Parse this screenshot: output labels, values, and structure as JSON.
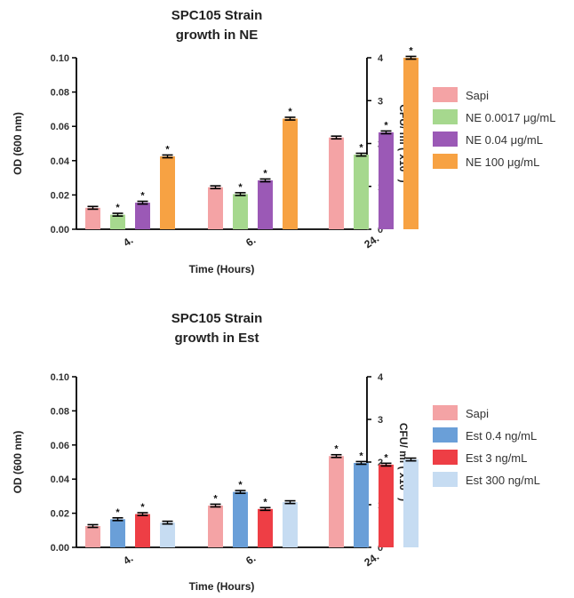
{
  "chart_data": [
    {
      "type": "bar",
      "title_lines": [
        "SPC105 Strain",
        "growth in NE"
      ],
      "xlabel": "Time (Hours)",
      "ylabel": "OD (600 nm)",
      "y2label_parts": [
        "CFU/ ml ( x10",
        "7",
        " )"
      ],
      "ylim": [
        0,
        0.1
      ],
      "y2lim": [
        0,
        4
      ],
      "yticks": [
        "0.00",
        "0.02",
        "0.04",
        "0.06",
        "0.08",
        "0.10"
      ],
      "y2ticks": [
        "0",
        "1",
        "2",
        "3",
        "4"
      ],
      "categories": [
        "4.",
        "6.",
        "24."
      ],
      "series": [
        {
          "name": "Sapi",
          "color": "#f4a3a5",
          "values": [
            0.0125,
            0.0245,
            0.0535
          ],
          "errors": [
            0.0008,
            0.0008,
            0.0008
          ],
          "sig": [
            false,
            false,
            false
          ]
        },
        {
          "name": "NE 0.0017 μg/mL",
          "color": "#a6d88e",
          "values": [
            0.0085,
            0.0205,
            0.0435
          ],
          "errors": [
            0.0008,
            0.0008,
            0.0008
          ],
          "sig": [
            true,
            true,
            true
          ]
        },
        {
          "name": "NE 0.04 μg/mL",
          "color": "#9b59b6",
          "values": [
            0.0155,
            0.0285,
            0.0565
          ],
          "errors": [
            0.0008,
            0.0008,
            0.0008
          ],
          "sig": [
            true,
            true,
            true
          ]
        },
        {
          "name": "NE 100 μg/mL",
          "color": "#f7a243",
          "values": [
            0.0425,
            0.0645,
            0.1
          ],
          "errors": [
            0.0008,
            0.0008,
            0.0008
          ],
          "sig": [
            true,
            true,
            true
          ]
        }
      ]
    },
    {
      "type": "bar",
      "title_lines": [
        "SPC105 Strain",
        "growth in Est"
      ],
      "xlabel": "Time (Hours)",
      "ylabel": "OD (600 nm)",
      "y2label_parts": [
        "CFU/ ml ( x10",
        "7",
        " )"
      ],
      "ylim": [
        0,
        0.1
      ],
      "y2lim": [
        0,
        4
      ],
      "yticks": [
        "0.00",
        "0.02",
        "0.04",
        "0.06",
        "0.08",
        "0.10"
      ],
      "y2ticks": [
        "0",
        "1",
        "2",
        "3",
        "4"
      ],
      "categories": [
        "4.",
        "6.",
        "24."
      ],
      "series": [
        {
          "name": "Sapi",
          "color": "#f4a3a5",
          "values": [
            0.0125,
            0.0245,
            0.0535
          ],
          "errors": [
            0.0008,
            0.0008,
            0.0008
          ],
          "sig": [
            false,
            true,
            true
          ]
        },
        {
          "name": "Est 0.4 ng/mL",
          "color": "#6a9fd8",
          "values": [
            0.0165,
            0.0325,
            0.0495
          ],
          "errors": [
            0.0008,
            0.0008,
            0.0008
          ],
          "sig": [
            true,
            true,
            true
          ]
        },
        {
          "name": "Est 3 ng/mL",
          "color": "#ee3e45",
          "values": [
            0.0195,
            0.0225,
            0.0485
          ],
          "errors": [
            0.0008,
            0.0008,
            0.0008
          ],
          "sig": [
            true,
            true,
            true
          ]
        },
        {
          "name": "Est 300 ng/mL",
          "color": "#c6dcf2",
          "values": [
            0.0145,
            0.0265,
            0.0515
          ],
          "errors": [
            0.0008,
            0.0008,
            0.0008
          ],
          "sig": [
            false,
            false,
            false
          ]
        }
      ]
    }
  ]
}
